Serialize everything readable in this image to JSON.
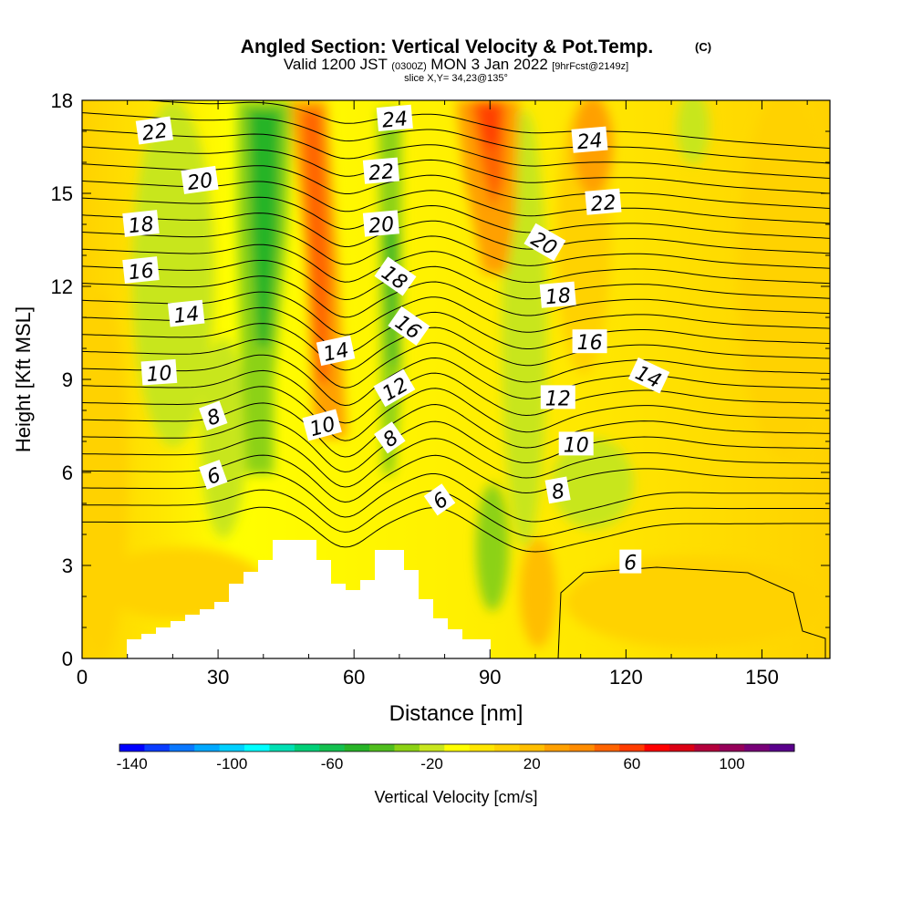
{
  "chart_data": {
    "type": "contour",
    "title": "Angled Section: Vertical Velocity & Pot.Temp.",
    "title_unit": "(C)",
    "subtitle": {
      "valid": "Valid 1200 JST",
      "utc": "(0300Z)",
      "date": "MON 3 Jan 2022",
      "fcst": "[9hrFcst@2149z]"
    },
    "slice": "slice X,Y= 34,23@135°",
    "xlabel": "Distance [nm]",
    "ylabel": "Height [Kft MSL]",
    "xlim": [
      0,
      165
    ],
    "ylim": [
      0,
      18
    ],
    "x_ticks": [
      "0",
      "30",
      "60",
      "90",
      "120",
      "150"
    ],
    "y_ticks": [
      "0",
      "3",
      "6",
      "9",
      "12",
      "15",
      "18"
    ],
    "colorbar": {
      "label": "Vertical Velocity [cm/s]",
      "tick_labels": [
        "-140",
        "-100",
        "-60",
        "-20",
        "20",
        "60",
        "100"
      ],
      "colors": [
        "#0000ff",
        "#0a3cff",
        "#0a78ff",
        "#00a8ff",
        "#00d0ff",
        "#00ffff",
        "#00e0b4",
        "#00d078",
        "#14c050",
        "#28b428",
        "#50be1e",
        "#8cd214",
        "#c8e61e",
        "#ffff00",
        "#ffe600",
        "#ffd200",
        "#ffbe00",
        "#ffa000",
        "#ff8c00",
        "#ff6400",
        "#ff3c00",
        "#ff0000",
        "#dc0014",
        "#b4003c",
        "#96005a",
        "#780078",
        "#5a008c"
      ]
    },
    "contour_labels": [
      {
        "text": "22",
        "x": 16,
        "y": 17.0,
        "angle": -8
      },
      {
        "text": "20",
        "x": 26,
        "y": 15.4,
        "angle": -8
      },
      {
        "text": "18",
        "x": 13,
        "y": 14.0,
        "angle": -6
      },
      {
        "text": "16",
        "x": 13,
        "y": 12.5,
        "angle": -6
      },
      {
        "text": "14",
        "x": 23,
        "y": 11.1,
        "angle": -6
      },
      {
        "text": "10",
        "x": 17,
        "y": 9.2,
        "angle": -4
      },
      {
        "text": "8",
        "x": 29,
        "y": 7.8,
        "angle": -20
      },
      {
        "text": "6",
        "x": 29,
        "y": 5.9,
        "angle": -20
      },
      {
        "text": "24",
        "x": 69,
        "y": 17.4,
        "angle": -5
      },
      {
        "text": "22",
        "x": 66,
        "y": 15.7,
        "angle": -5
      },
      {
        "text": "20",
        "x": 66,
        "y": 14.0,
        "angle": -5
      },
      {
        "text": "18",
        "x": 69,
        "y": 12.3,
        "angle": 35
      },
      {
        "text": "16",
        "x": 72,
        "y": 10.7,
        "angle": 35
      },
      {
        "text": "14",
        "x": 56,
        "y": 9.9,
        "angle": -12
      },
      {
        "text": "12",
        "x": 69,
        "y": 8.7,
        "angle": -30
      },
      {
        "text": "10",
        "x": 53,
        "y": 7.5,
        "angle": -15
      },
      {
        "text": "8",
        "x": 68,
        "y": 7.1,
        "angle": -35
      },
      {
        "text": "6",
        "x": 79,
        "y": 5.1,
        "angle": -35
      },
      {
        "text": "24",
        "x": 112,
        "y": 16.7,
        "angle": -5
      },
      {
        "text": "22",
        "x": 115,
        "y": 14.7,
        "angle": -5
      },
      {
        "text": "20",
        "x": 102,
        "y": 13.4,
        "angle": 30
      },
      {
        "text": "18",
        "x": 105,
        "y": 11.7,
        "angle": -5
      },
      {
        "text": "16",
        "x": 112,
        "y": 10.2,
        "angle": 0
      },
      {
        "text": "14",
        "x": 125,
        "y": 9.1,
        "angle": 25
      },
      {
        "text": "12",
        "x": 105,
        "y": 8.4,
        "angle": 0
      },
      {
        "text": "10",
        "x": 109,
        "y": 6.9,
        "angle": 0
      },
      {
        "text": "8",
        "x": 105,
        "y": 5.4,
        "angle": -10
      },
      {
        "text": "6",
        "x": 121,
        "y": 3.1,
        "angle": 0
      }
    ]
  }
}
